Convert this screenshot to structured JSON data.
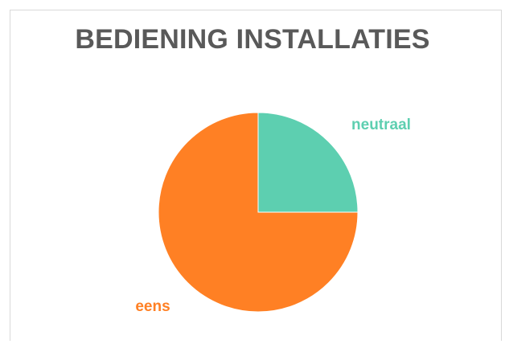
{
  "chart_data": {
    "type": "pie",
    "title": "BEDIENING INSTALLATIES",
    "slices": [
      {
        "label": "neutraal",
        "value": 25,
        "color": "#5dcfb0"
      },
      {
        "label": "eens",
        "value": 75,
        "color": "#ff8024"
      }
    ],
    "start_angle_deg": 0,
    "direction": "clockwise",
    "legend": "none",
    "data_labels": "category name outside slice"
  }
}
